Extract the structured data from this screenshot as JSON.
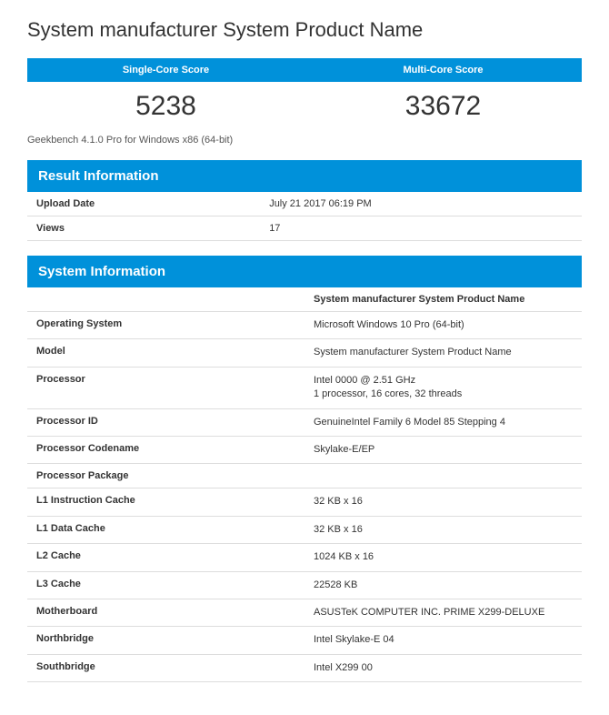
{
  "page_title": "System manufacturer System Product Name",
  "scores": {
    "single_label": "Single-Core Score",
    "single_value": "5238",
    "multi_label": "Multi-Core Score",
    "multi_value": "33672"
  },
  "subtitle": "Geekbench 4.1.0 Pro for Windows x86 (64-bit)",
  "colors": {
    "accent": "#0091da",
    "text": "#333333",
    "border": "#dddddd",
    "bg": "#ffffff"
  },
  "result_info": {
    "header": "Result Information",
    "rows": [
      {
        "label": "Upload Date",
        "value": "July 21 2017 06:19 PM"
      },
      {
        "label": "Views",
        "value": "17"
      }
    ]
  },
  "system_info": {
    "header": "System Information",
    "column_header": "System manufacturer System Product Name",
    "rows": [
      {
        "label": "Operating System",
        "value": "Microsoft Windows 10 Pro (64-bit)"
      },
      {
        "label": "Model",
        "value": "System manufacturer System Product Name"
      },
      {
        "label": "Processor",
        "value": "Intel 0000 @ 2.51 GHz\n1 processor, 16 cores, 32 threads"
      },
      {
        "label": "Processor ID",
        "value": "GenuineIntel Family 6 Model 85 Stepping 4"
      },
      {
        "label": "Processor Codename",
        "value": "Skylake-E/EP"
      },
      {
        "label": "Processor Package",
        "value": ""
      },
      {
        "label": "L1 Instruction Cache",
        "value": "32 KB x 16"
      },
      {
        "label": "L1 Data Cache",
        "value": "32 KB x 16"
      },
      {
        "label": "L2 Cache",
        "value": "1024 KB x 16"
      },
      {
        "label": "L3 Cache",
        "value": "22528 KB"
      },
      {
        "label": "Motherboard",
        "value": "ASUSTeK COMPUTER INC. PRIME X299-DELUXE"
      },
      {
        "label": "Northbridge",
        "value": "Intel Skylake-E 04"
      },
      {
        "label": "Southbridge",
        "value": "Intel X299 00"
      }
    ]
  }
}
